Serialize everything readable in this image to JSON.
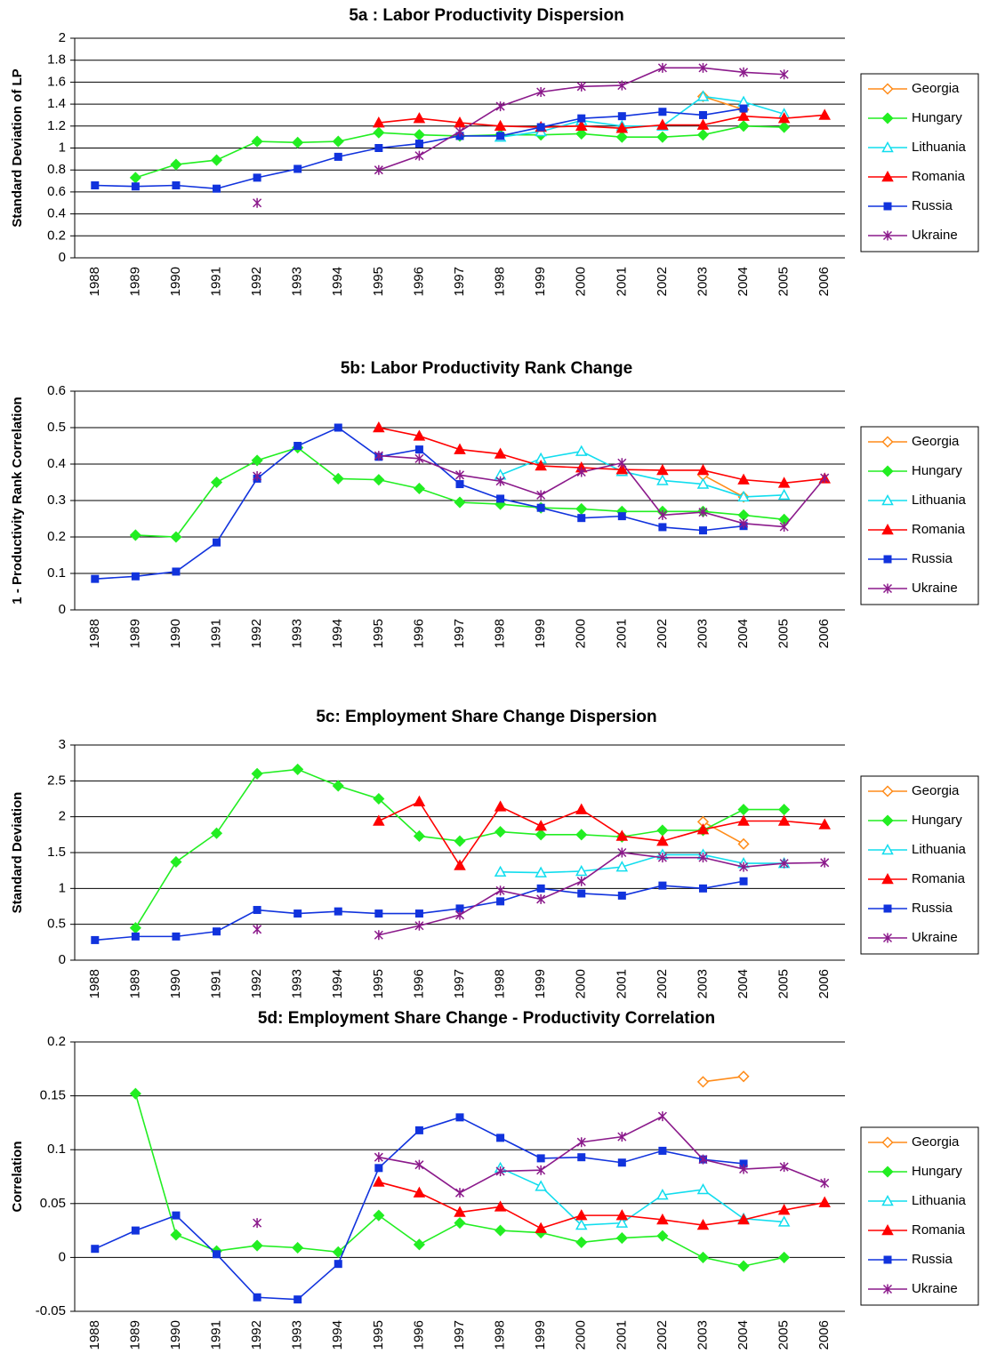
{
  "chart_data": [
    {
      "type": "line",
      "title": "5a : Labor Productivity Dispersion",
      "y_label": "Standard Deviation of LP",
      "categories": [
        "1988",
        "1989",
        "1990",
        "1991",
        "1992",
        "1993",
        "1994",
        "1995",
        "1996",
        "1997",
        "1998",
        "1999",
        "2000",
        "2001",
        "2002",
        "2003",
        "2004",
        "2005",
        "2006"
      ],
      "ylim": [
        0,
        2
      ],
      "yticks": [
        0,
        0.2,
        0.4,
        0.6,
        0.8,
        1,
        1.2,
        1.4,
        1.6,
        1.8,
        2
      ],
      "grid": true,
      "legend": "right",
      "series": [
        {
          "name": "Georgia",
          "color": "#ff8c1a",
          "marker": "diamond-open",
          "values": [
            null,
            null,
            null,
            null,
            null,
            null,
            null,
            null,
            null,
            null,
            null,
            null,
            null,
            null,
            null,
            1.47,
            1.35,
            null,
            null
          ]
        },
        {
          "name": "Hungary",
          "color": "#22ee22",
          "marker": "diamond",
          "values": [
            null,
            0.73,
            0.85,
            0.89,
            1.06,
            1.05,
            1.06,
            1.14,
            1.12,
            1.11,
            1.12,
            1.12,
            1.13,
            1.1,
            1.1,
            1.12,
            1.2,
            1.19,
            null
          ]
        },
        {
          "name": "Lithuania",
          "color": "#11ddee",
          "marker": "triangle-open",
          "values": [
            null,
            null,
            null,
            null,
            null,
            null,
            null,
            null,
            null,
            null,
            1.1,
            1.15,
            1.25,
            1.2,
            1.2,
            1.47,
            1.42,
            1.31,
            null
          ]
        },
        {
          "name": "Romania",
          "color": "#ff0000",
          "marker": "triangle",
          "values": [
            null,
            null,
            null,
            null,
            null,
            null,
            null,
            1.23,
            1.27,
            1.23,
            1.2,
            1.19,
            1.2,
            1.18,
            1.21,
            1.21,
            1.29,
            1.27,
            1.3
          ]
        },
        {
          "name": "Russia",
          "color": "#1133dd",
          "marker": "square",
          "values": [
            0.66,
            0.65,
            0.66,
            0.63,
            0.73,
            0.81,
            0.92,
            1.0,
            1.04,
            1.11,
            1.11,
            1.19,
            1.27,
            1.29,
            1.33,
            1.3,
            1.36,
            null,
            null
          ]
        },
        {
          "name": "Ukraine",
          "color": "#8b1a8b",
          "marker": "asterisk",
          "values": [
            null,
            null,
            null,
            null,
            0.5,
            null,
            null,
            0.8,
            0.93,
            1.15,
            1.38,
            1.51,
            1.56,
            1.57,
            1.73,
            1.73,
            1.69,
            1.67,
            null
          ]
        }
      ]
    },
    {
      "type": "line",
      "title": "5b: Labor Productivity Rank Change",
      "y_label": "1 - Productivity Rank Correlation",
      "categories": [
        "1988",
        "1989",
        "1990",
        "1991",
        "1992",
        "1993",
        "1994",
        "1995",
        "1996",
        "1997",
        "1998",
        "1999",
        "2000",
        "2001",
        "2002",
        "2003",
        "2004",
        "2005",
        "2006"
      ],
      "ylim": [
        0,
        0.6
      ],
      "yticks": [
        0,
        0.1,
        0.2,
        0.3,
        0.4,
        0.5,
        0.6
      ],
      "grid": true,
      "legend": "right",
      "series": [
        {
          "name": "Georgia",
          "color": "#ff8c1a",
          "marker": "diamond-open",
          "values": [
            null,
            null,
            null,
            null,
            null,
            null,
            null,
            null,
            null,
            null,
            null,
            null,
            null,
            null,
            null,
            0.37,
            0.31,
            null,
            null
          ]
        },
        {
          "name": "Hungary",
          "color": "#22ee22",
          "marker": "diamond",
          "values": [
            null,
            0.205,
            0.2,
            0.35,
            0.41,
            0.445,
            0.36,
            0.357,
            0.333,
            0.295,
            0.29,
            0.28,
            0.277,
            0.27,
            0.27,
            0.27,
            0.26,
            0.248,
            null
          ]
        },
        {
          "name": "Lithuania",
          "color": "#11ddee",
          "marker": "triangle-open",
          "values": [
            null,
            null,
            null,
            null,
            null,
            null,
            null,
            null,
            null,
            null,
            0.37,
            0.415,
            0.435,
            0.38,
            0.355,
            0.345,
            0.31,
            0.315,
            null
          ]
        },
        {
          "name": "Romania",
          "color": "#ff0000",
          "marker": "triangle",
          "values": [
            null,
            null,
            null,
            null,
            null,
            null,
            null,
            0.5,
            0.477,
            0.44,
            0.428,
            0.395,
            0.39,
            0.385,
            0.383,
            0.383,
            0.357,
            0.348,
            0.36
          ]
        },
        {
          "name": "Russia",
          "color": "#1133dd",
          "marker": "square",
          "values": [
            0.085,
            0.092,
            0.105,
            0.185,
            0.36,
            0.45,
            0.5,
            0.42,
            0.44,
            0.345,
            0.305,
            0.28,
            0.252,
            0.257,
            0.227,
            0.218,
            0.23,
            null,
            null
          ]
        },
        {
          "name": "Ukraine",
          "color": "#8b1a8b",
          "marker": "asterisk",
          "values": [
            null,
            null,
            null,
            null,
            0.367,
            null,
            null,
            0.423,
            0.415,
            0.37,
            0.353,
            0.315,
            0.378,
            0.403,
            0.26,
            0.268,
            0.237,
            0.228,
            0.362
          ]
        }
      ]
    },
    {
      "type": "line",
      "title": "5c: Employment Share Change Dispersion",
      "y_label": "Standard Deviation",
      "categories": [
        "1988",
        "1989",
        "1990",
        "1991",
        "1992",
        "1993",
        "1994",
        "1995",
        "1996",
        "1997",
        "1998",
        "1999",
        "2000",
        "2001",
        "2002",
        "2003",
        "2004",
        "2005",
        "2006"
      ],
      "ylim": [
        0,
        3
      ],
      "yticks": [
        0,
        0.5,
        1,
        1.5,
        2,
        2.5,
        3
      ],
      "grid": true,
      "legend": "right",
      "series": [
        {
          "name": "Georgia",
          "color": "#ff8c1a",
          "marker": "diamond-open",
          "values": [
            null,
            null,
            null,
            null,
            null,
            null,
            null,
            null,
            null,
            null,
            null,
            null,
            null,
            null,
            null,
            1.93,
            1.62,
            null,
            null
          ]
        },
        {
          "name": "Hungary",
          "color": "#22ee22",
          "marker": "diamond",
          "values": [
            null,
            0.45,
            1.37,
            1.77,
            2.6,
            2.66,
            2.43,
            2.25,
            1.73,
            1.66,
            1.79,
            1.75,
            1.75,
            1.72,
            1.81,
            1.81,
            2.1,
            2.1,
            null
          ]
        },
        {
          "name": "Lithuania",
          "color": "#11ddee",
          "marker": "triangle-open",
          "values": [
            null,
            null,
            null,
            null,
            null,
            null,
            null,
            null,
            null,
            null,
            1.23,
            1.22,
            1.24,
            1.3,
            1.47,
            1.47,
            1.35,
            1.35,
            null
          ]
        },
        {
          "name": "Romania",
          "color": "#ff0000",
          "marker": "triangle",
          "values": [
            null,
            null,
            null,
            null,
            null,
            null,
            null,
            1.94,
            2.21,
            1.32,
            2.14,
            1.87,
            2.1,
            1.73,
            1.66,
            1.82,
            1.94,
            1.94,
            1.89
          ]
        },
        {
          "name": "Russia",
          "color": "#1133dd",
          "marker": "square",
          "values": [
            0.28,
            0.33,
            0.33,
            0.4,
            0.7,
            0.65,
            0.68,
            0.65,
            0.65,
            0.72,
            0.82,
            1.0,
            0.93,
            0.9,
            1.04,
            1.0,
            1.1,
            null,
            null
          ]
        },
        {
          "name": "Ukraine",
          "color": "#8b1a8b",
          "marker": "asterisk",
          "values": [
            null,
            null,
            null,
            null,
            0.43,
            null,
            null,
            0.35,
            0.48,
            0.63,
            0.97,
            0.85,
            1.1,
            1.5,
            1.43,
            1.43,
            1.3,
            1.35,
            1.36
          ]
        }
      ]
    },
    {
      "type": "line",
      "title": "5d: Employment Share Change - Productivity Correlation",
      "y_label": "Correlation",
      "categories": [
        "1988",
        "1989",
        "1990",
        "1991",
        "1992",
        "1993",
        "1994",
        "1995",
        "1996",
        "1997",
        "1998",
        "1999",
        "2000",
        "2001",
        "2002",
        "2003",
        "2004",
        "2005",
        "2006"
      ],
      "ylim": [
        -0.05,
        0.2
      ],
      "yticks": [
        -0.05,
        0,
        0.05,
        0.1,
        0.15,
        0.2
      ],
      "grid": true,
      "legend": "right",
      "series": [
        {
          "name": "Georgia",
          "color": "#ff8c1a",
          "marker": "diamond-open",
          "values": [
            null,
            null,
            null,
            null,
            null,
            null,
            null,
            null,
            null,
            null,
            null,
            null,
            null,
            null,
            null,
            0.163,
            0.168,
            null,
            null
          ]
        },
        {
          "name": "Hungary",
          "color": "#22ee22",
          "marker": "diamond",
          "values": [
            null,
            0.152,
            0.021,
            0.006,
            0.011,
            0.009,
            0.005,
            0.039,
            0.012,
            0.032,
            0.025,
            0.023,
            0.014,
            0.018,
            0.02,
            0,
            -0.008,
            0,
            null
          ]
        },
        {
          "name": "Lithuania",
          "color": "#11ddee",
          "marker": "triangle-open",
          "values": [
            null,
            null,
            null,
            null,
            null,
            null,
            null,
            null,
            null,
            null,
            0.083,
            0.066,
            0.03,
            0.032,
            0.058,
            0.063,
            0.036,
            0.033,
            null
          ]
        },
        {
          "name": "Romania",
          "color": "#ff0000",
          "marker": "triangle",
          "values": [
            null,
            null,
            null,
            null,
            null,
            null,
            null,
            0.07,
            0.06,
            0.042,
            0.047,
            0.027,
            0.039,
            0.039,
            0.035,
            0.03,
            0.035,
            0.044,
            0.051
          ]
        },
        {
          "name": "Russia",
          "color": "#1133dd",
          "marker": "square",
          "values": [
            0.008,
            0.025,
            0.039,
            0.003,
            -0.037,
            -0.039,
            -0.006,
            0.083,
            0.118,
            0.13,
            0.111,
            0.092,
            0.093,
            0.088,
            0.099,
            0.091,
            0.087,
            null,
            null
          ]
        },
        {
          "name": "Ukraine",
          "color": "#8b1a8b",
          "marker": "asterisk",
          "values": [
            null,
            null,
            null,
            null,
            0.032,
            null,
            null,
            0.093,
            0.086,
            0.06,
            0.08,
            0.081,
            0.107,
            0.112,
            0.131,
            0.091,
            0.082,
            0.084,
            0.069
          ]
        }
      ]
    }
  ]
}
